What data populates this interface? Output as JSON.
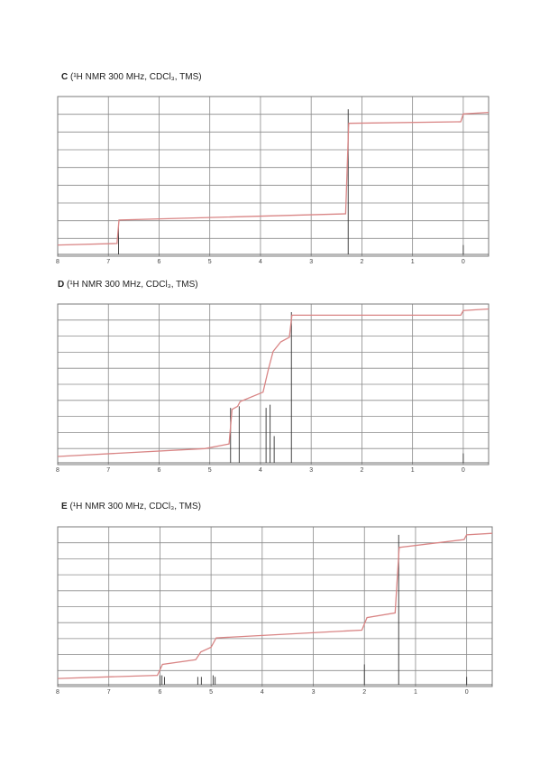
{
  "colors": {
    "grid": "#8a8a8a",
    "peaks": "#333333",
    "integral": "#d98585"
  },
  "chart_data": [
    {
      "id": "C",
      "type": "line",
      "title_letter": "C",
      "title_text": "(¹H NMR 300 MHz, CDCl₃, TMS)",
      "xlim": [
        8,
        -0.5
      ],
      "x_ticks": [
        "8",
        "7",
        "6",
        "5",
        "4",
        "3",
        "2",
        "1",
        "0"
      ],
      "x_tick_values": [
        8,
        7,
        6,
        5,
        4,
        3,
        2,
        1,
        0
      ],
      "grid_rows": 9,
      "peaks": [
        {
          "shift": 6.8,
          "height": 0.18
        },
        {
          "shift": 2.27,
          "height": 0.93
        },
        {
          "shift": 0.0,
          "height": 0.06
        }
      ],
      "integral": [
        [
          8.0,
          0.06
        ],
        [
          6.83,
          0.07
        ],
        [
          6.79,
          0.22
        ],
        [
          2.32,
          0.26
        ],
        [
          2.26,
          0.84
        ],
        [
          0.05,
          0.85
        ],
        [
          0.0,
          0.9
        ],
        [
          -0.5,
          0.91
        ]
      ]
    },
    {
      "id": "D",
      "type": "line",
      "title_letter": "D",
      "title_text": "(¹H NMR 300 MHz, CDCl₃, TMS)",
      "xlim": [
        8,
        -0.5
      ],
      "x_ticks": [
        "8",
        "7",
        "6",
        "5",
        "4",
        "3",
        "2",
        "1",
        "0"
      ],
      "x_tick_values": [
        8,
        7,
        6,
        5,
        4,
        3,
        2,
        1,
        0
      ],
      "grid_rows": 10,
      "peaks": [
        {
          "shift": 4.59,
          "height": 0.35
        },
        {
          "shift": 4.42,
          "height": 0.36
        },
        {
          "shift": 3.89,
          "height": 0.35
        },
        {
          "shift": 3.81,
          "height": 0.37
        },
        {
          "shift": 3.73,
          "height": 0.17
        },
        {
          "shift": 3.39,
          "height": 0.96
        },
        {
          "shift": 0.0,
          "height": 0.06
        }
      ],
      "integral": [
        [
          8.0,
          0.04
        ],
        [
          5.1,
          0.09
        ],
        [
          4.62,
          0.12
        ],
        [
          4.56,
          0.34
        ],
        [
          4.45,
          0.36
        ],
        [
          4.4,
          0.39
        ],
        [
          3.95,
          0.45
        ],
        [
          3.84,
          0.6
        ],
        [
          3.75,
          0.71
        ],
        [
          3.6,
          0.77
        ],
        [
          3.43,
          0.8
        ],
        [
          3.38,
          0.94
        ],
        [
          0.05,
          0.94
        ],
        [
          0.0,
          0.97
        ],
        [
          -0.5,
          0.98
        ]
      ]
    },
    {
      "id": "E",
      "type": "line",
      "title_letter": "E",
      "title_text": "(¹H NMR 300 MHz, CDCl₃, TMS)",
      "xlim": [
        8,
        -0.5
      ],
      "x_ticks": [
        "8",
        "7",
        "6",
        "5",
        "4",
        "3",
        "2",
        "1",
        "0"
      ],
      "x_tick_values": [
        8,
        7,
        6,
        5,
        4,
        3,
        2,
        1,
        0
      ],
      "grid_rows": 10,
      "peaks": [
        {
          "shift": 6.0,
          "height": 0.06
        },
        {
          "shift": 5.96,
          "height": 0.06
        },
        {
          "shift": 5.91,
          "height": 0.05
        },
        {
          "shift": 5.26,
          "height": 0.05
        },
        {
          "shift": 5.19,
          "height": 0.05
        },
        {
          "shift": 4.96,
          "height": 0.06
        },
        {
          "shift": 4.92,
          "height": 0.05
        },
        {
          "shift": 2.0,
          "height": 0.13
        },
        {
          "shift": 1.33,
          "height": 0.96
        },
        {
          "shift": 0.0,
          "height": 0.05
        }
      ],
      "integral": [
        [
          8.0,
          0.04
        ],
        [
          6.05,
          0.06
        ],
        [
          5.95,
          0.13
        ],
        [
          5.3,
          0.16
        ],
        [
          5.2,
          0.21
        ],
        [
          5.0,
          0.24
        ],
        [
          4.9,
          0.3
        ],
        [
          2.05,
          0.35
        ],
        [
          1.95,
          0.43
        ],
        [
          1.4,
          0.46
        ],
        [
          1.32,
          0.88
        ],
        [
          0.05,
          0.93
        ],
        [
          0.0,
          0.96
        ],
        [
          -0.5,
          0.97
        ]
      ]
    }
  ]
}
